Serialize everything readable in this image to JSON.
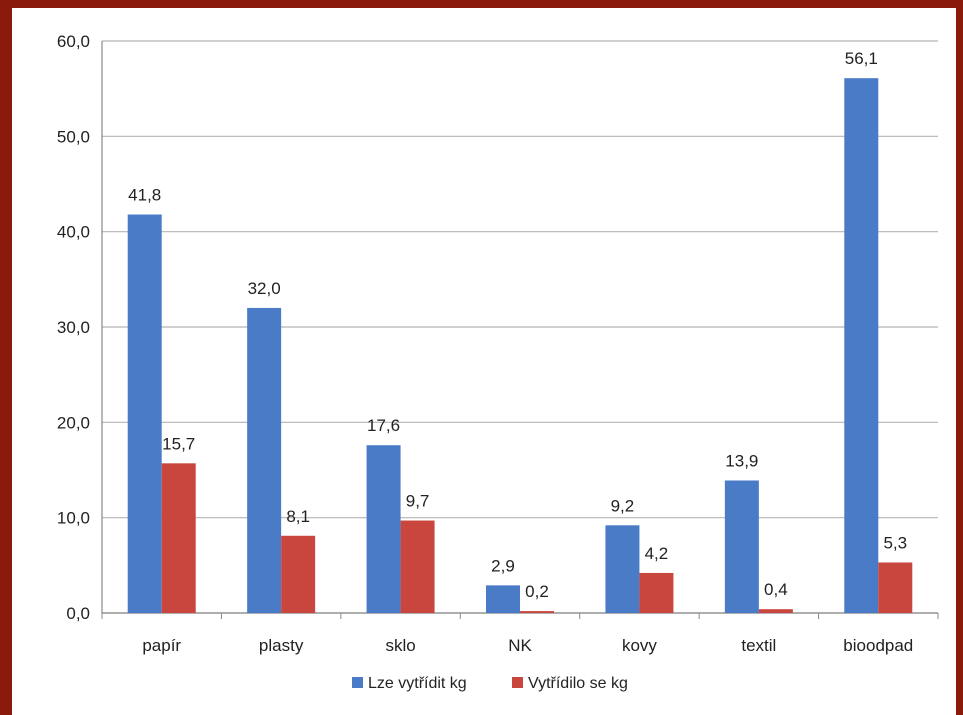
{
  "chart_data": {
    "type": "bar",
    "categories": [
      "papír",
      "plasty",
      "sklo",
      "NK",
      "kovy",
      "textil",
      "bioodpad"
    ],
    "series": [
      {
        "name": "Lze vytřídit kg",
        "color": "#4a7bc6",
        "values": [
          41.8,
          32.0,
          17.6,
          2.9,
          9.2,
          13.9,
          56.1
        ],
        "value_labels": [
          "41,8",
          "32,0",
          "17,6",
          "2,9",
          "9,2",
          "13,9",
          "56,1"
        ]
      },
      {
        "name": "Vytřídilo se kg",
        "color": "#c9463e",
        "values": [
          15.7,
          8.1,
          9.7,
          0.2,
          4.2,
          0.4,
          5.3
        ],
        "value_labels": [
          "15,7",
          "8,1",
          "9,7",
          "0,2",
          "4,2",
          "0,4",
          "5,3"
        ]
      }
    ],
    "ylim": [
      0,
      60
    ],
    "yticks": [
      0,
      10,
      20,
      30,
      40,
      50,
      60
    ],
    "ytick_labels": [
      "0,0",
      "10,0",
      "20,0",
      "30,0",
      "40,0",
      "50,0",
      "60,0"
    ],
    "grid": true,
    "legend_position": "bottom",
    "title": "",
    "xlabel": "",
    "ylabel": ""
  }
}
